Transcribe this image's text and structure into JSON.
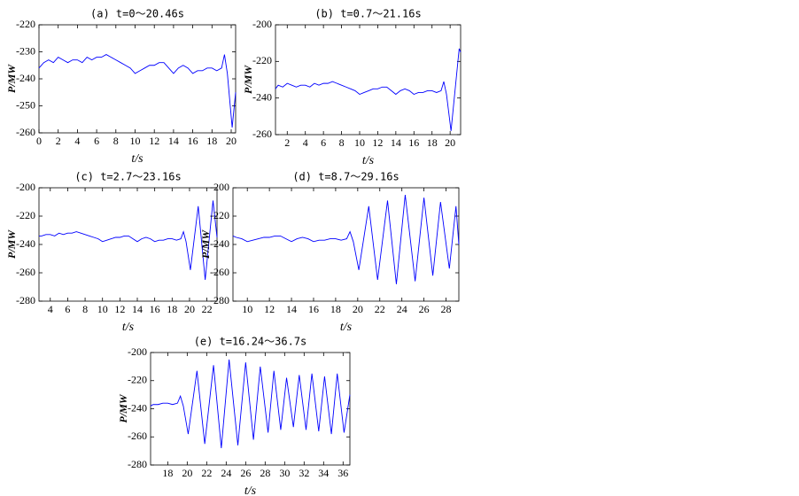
{
  "chart_data": [
    {
      "type": "line",
      "title": "(a) t=0～20.46s",
      "xlabel": "t/s",
      "ylabel": "P/MW",
      "color": "#0000ff",
      "xlim": [
        0,
        20.46
      ],
      "ylim": [
        -260,
        -220
      ],
      "xticks": [
        0,
        2,
        4,
        6,
        8,
        10,
        12,
        14,
        16,
        18,
        20
      ],
      "yticks": [
        -260,
        -250,
        -240,
        -230,
        -220
      ],
      "x": [
        0,
        0.5,
        1,
        1.5,
        2,
        2.5,
        3,
        3.5,
        4,
        4.5,
        5,
        5.5,
        6,
        6.5,
        7,
        7.5,
        8,
        8.5,
        9,
        9.5,
        10,
        10.5,
        11,
        11.5,
        12,
        12.5,
        13,
        13.5,
        14,
        14.5,
        15,
        15.5,
        16,
        16.5,
        17,
        17.5,
        18,
        18.5,
        19,
        19.3,
        19.6,
        20.1,
        20.46
      ],
      "values": [
        -236,
        -234,
        -233,
        -234,
        -232,
        -233,
        -234,
        -233,
        -233,
        -234,
        -232,
        -233,
        -232,
        -232,
        -231,
        -232,
        -233,
        -234,
        -235,
        -236,
        -238,
        -237,
        -236,
        -235,
        -235,
        -234,
        -234,
        -236,
        -238,
        -236,
        -235,
        -236,
        -238,
        -237,
        -237,
        -236,
        -236,
        -237,
        -236,
        -231,
        -238,
        -258,
        -245
      ]
    },
    {
      "type": "line",
      "title": "(b) t=0.7～21.16s",
      "xlabel": "t/s",
      "ylabel": "P/MW",
      "color": "#0000ff",
      "xlim": [
        0.7,
        21.16
      ],
      "ylim": [
        -260,
        -200
      ],
      "xticks": [
        2,
        4,
        6,
        8,
        10,
        12,
        14,
        16,
        18,
        20
      ],
      "yticks": [
        -260,
        -240,
        -220,
        -200
      ],
      "x": [
        0.7,
        1,
        1.5,
        2,
        2.5,
        3,
        3.5,
        4,
        4.5,
        5,
        5.5,
        6,
        6.5,
        7,
        7.5,
        8,
        8.5,
        9,
        9.5,
        10,
        10.5,
        11,
        11.5,
        12,
        12.5,
        13,
        13.5,
        14,
        14.5,
        15,
        15.5,
        16,
        16.5,
        17,
        17.5,
        18,
        18.5,
        19,
        19.3,
        19.6,
        20.1,
        21.0,
        21.16
      ],
      "values": [
        -235,
        -233,
        -234,
        -232,
        -233,
        -234,
        -233,
        -233,
        -234,
        -232,
        -233,
        -232,
        -232,
        -231,
        -232,
        -233,
        -234,
        -235,
        -236,
        -238,
        -237,
        -236,
        -235,
        -235,
        -234,
        -234,
        -236,
        -238,
        -236,
        -235,
        -236,
        -238,
        -237,
        -237,
        -236,
        -236,
        -237,
        -236,
        -231,
        -238,
        -258,
        -213,
        -215
      ]
    },
    {
      "type": "line",
      "title": "(c) t=2.7～23.16s",
      "xlabel": "t/s",
      "ylabel": "P/MW",
      "color": "#0000ff",
      "xlim": [
        2.7,
        23.16
      ],
      "ylim": [
        -280,
        -200
      ],
      "xticks": [
        4,
        6,
        8,
        10,
        12,
        14,
        16,
        18,
        20,
        22
      ],
      "yticks": [
        -280,
        -260,
        -240,
        -220,
        -200
      ],
      "x": [
        2.7,
        3,
        3.5,
        4,
        4.5,
        5,
        5.5,
        6,
        6.5,
        7,
        7.5,
        8,
        8.5,
        9,
        9.5,
        10,
        10.5,
        11,
        11.5,
        12,
        12.5,
        13,
        13.5,
        14,
        14.5,
        15,
        15.5,
        16,
        16.5,
        17,
        17.5,
        18,
        18.5,
        19,
        19.3,
        19.6,
        20.1,
        21.0,
        21.8,
        22.7,
        23.16
      ],
      "values": [
        -234,
        -234,
        -233,
        -233,
        -234,
        -232,
        -233,
        -232,
        -232,
        -231,
        -232,
        -233,
        -234,
        -235,
        -236,
        -238,
        -237,
        -236,
        -235,
        -235,
        -234,
        -234,
        -236,
        -238,
        -236,
        -235,
        -236,
        -238,
        -237,
        -237,
        -236,
        -236,
        -237,
        -236,
        -231,
        -238,
        -258,
        -213,
        -265,
        -209,
        -235
      ]
    },
    {
      "type": "line",
      "title": "(d) t=8.7～29.16s",
      "xlabel": "t/s",
      "ylabel": "P/MW",
      "color": "#0000ff",
      "xlim": [
        8.7,
        29.16
      ],
      "ylim": [
        -280,
        -200
      ],
      "xticks": [
        10,
        12,
        14,
        16,
        18,
        20,
        22,
        24,
        26,
        28
      ],
      "yticks": [
        -280,
        -260,
        -240,
        -220,
        -200
      ],
      "x": [
        8.7,
        9,
        9.5,
        10,
        10.5,
        11,
        11.5,
        12,
        12.5,
        13,
        13.5,
        14,
        14.5,
        15,
        15.5,
        16,
        16.5,
        17,
        17.5,
        18,
        18.5,
        19,
        19.3,
        19.6,
        20.1,
        21.0,
        21.8,
        22.7,
        23.5,
        24.3,
        25.2,
        26.0,
        26.8,
        27.5,
        28.3,
        28.9,
        29.16
      ],
      "values": [
        -234,
        -235,
        -236,
        -238,
        -237,
        -236,
        -235,
        -235,
        -234,
        -234,
        -236,
        -238,
        -236,
        -235,
        -236,
        -238,
        -237,
        -237,
        -236,
        -236,
        -237,
        -236,
        -231,
        -238,
        -258,
        -213,
        -265,
        -209,
        -268,
        -205,
        -266,
        -207,
        -262,
        -210,
        -257,
        -213,
        -240
      ]
    },
    {
      "type": "line",
      "title": "(e) t=16.24～36.7s",
      "xlabel": "t/s",
      "ylabel": "P/MW",
      "color": "#0000ff",
      "xlim": [
        16.24,
        36.7
      ],
      "ylim": [
        -280,
        -200
      ],
      "xticks": [
        18,
        20,
        22,
        24,
        26,
        28,
        30,
        32,
        34,
        36
      ],
      "yticks": [
        -280,
        -260,
        -240,
        -220,
        -200
      ],
      "x": [
        16.24,
        16.5,
        17,
        17.5,
        18,
        18.5,
        19,
        19.3,
        19.6,
        20.1,
        21.0,
        21.8,
        22.7,
        23.5,
        24.3,
        25.2,
        26.0,
        26.8,
        27.5,
        28.3,
        28.9,
        29.6,
        30.2,
        30.9,
        31.5,
        32.2,
        32.8,
        33.5,
        34.1,
        34.8,
        35.4,
        36.1,
        36.7
      ],
      "values": [
        -238,
        -237,
        -237,
        -236,
        -236,
        -237,
        -236,
        -231,
        -238,
        -258,
        -213,
        -265,
        -209,
        -268,
        -205,
        -266,
        -207,
        -262,
        -210,
        -257,
        -213,
        -255,
        -218,
        -253,
        -216,
        -255,
        -215,
        -256,
        -217,
        -258,
        -215,
        -257,
        -230
      ]
    }
  ]
}
